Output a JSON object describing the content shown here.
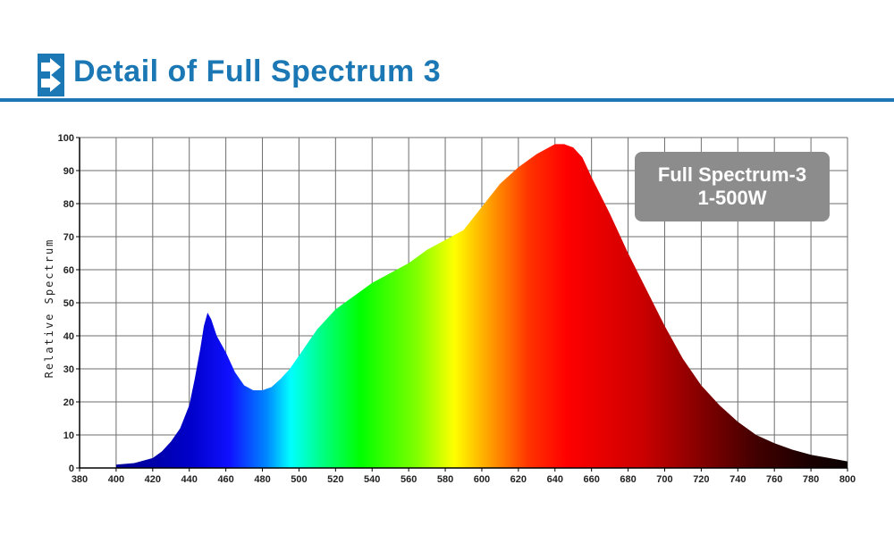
{
  "header": {
    "title": "Detail of Full Spectrum 3",
    "icon": "double-arrow-right-icon",
    "accent_color": "#1b78b4"
  },
  "badge": {
    "line1": "Full Spectrum-3",
    "line2": "1-500W",
    "background_color": "#8c8c8c"
  },
  "chart_data": {
    "type": "area",
    "title": "",
    "xlabel": "",
    "ylabel": "Relative Spectrum",
    "xlim": [
      380,
      800
    ],
    "ylim": [
      0,
      100
    ],
    "grid": true,
    "fill": "visible-spectrum gradient by wavelength",
    "x_ticks": [
      380,
      400,
      420,
      440,
      460,
      480,
      500,
      520,
      540,
      560,
      580,
      600,
      620,
      640,
      660,
      680,
      700,
      720,
      740,
      760,
      780,
      800
    ],
    "y_ticks": [
      0,
      10,
      20,
      30,
      40,
      50,
      60,
      70,
      80,
      90,
      100
    ],
    "x": [
      400,
      410,
      420,
      425,
      430,
      435,
      440,
      443,
      446,
      448,
      450,
      452,
      455,
      460,
      465,
      470,
      475,
      480,
      485,
      490,
      495,
      500,
      505,
      510,
      515,
      520,
      530,
      540,
      550,
      560,
      570,
      580,
      590,
      600,
      610,
      620,
      630,
      640,
      645,
      650,
      655,
      660,
      670,
      680,
      690,
      700,
      710,
      720,
      730,
      740,
      750,
      760,
      770,
      780,
      790,
      800
    ],
    "y": [
      1,
      1.5,
      3,
      5,
      8,
      12,
      19,
      27,
      36,
      43,
      47,
      45,
      40,
      35,
      29,
      25,
      23.5,
      23.5,
      24.5,
      27,
      30,
      34,
      38,
      42,
      45,
      48,
      52,
      56,
      59,
      62,
      66,
      69,
      72,
      79,
      86,
      91,
      95,
      98,
      98,
      97,
      94,
      88,
      77,
      65,
      54,
      43,
      33,
      25,
      19,
      14,
      10,
      7.5,
      5.5,
      4,
      3,
      2
    ]
  }
}
